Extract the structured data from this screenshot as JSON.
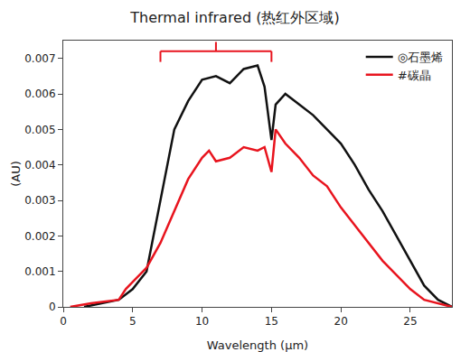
{
  "chart_data": {
    "type": "line",
    "title": "Thermal infrared (热红外区域)",
    "x_label": "Wavelength (μm)",
    "y_label": "(AU)",
    "highlight_range": [
      7,
      15
    ],
    "xlim": [
      0,
      28
    ],
    "xticks": [
      0,
      5,
      10,
      15,
      20,
      25
    ],
    "ylim": [
      0,
      0.0075
    ],
    "yticks": [
      0,
      0.001,
      0.002,
      0.003,
      0.004,
      0.005,
      0.006,
      0.007
    ],
    "grid": false,
    "legend": "top-right",
    "series": [
      {
        "name": "◎石墨烯",
        "color": "#111111",
        "x": [
          1.5,
          4,
          5,
          6,
          6.5,
          7,
          7.5,
          8,
          9,
          10,
          11,
          12,
          13,
          14,
          14.5,
          15,
          15.3,
          16,
          17,
          18,
          19,
          20,
          21,
          22,
          23,
          24,
          25,
          26,
          27,
          28
        ],
        "values": [
          0,
          0.0002,
          0.0005,
          0.001,
          0.002,
          0.003,
          0.004,
          0.005,
          0.0058,
          0.0064,
          0.0065,
          0.0063,
          0.0067,
          0.0068,
          0.0062,
          0.0047,
          0.0057,
          0.006,
          0.0057,
          0.0054,
          0.005,
          0.0046,
          0.004,
          0.0033,
          0.0027,
          0.002,
          0.0013,
          0.0006,
          0.0002,
          0
        ]
      },
      {
        "name": "#碳晶",
        "color": "#e8141e",
        "x": [
          0.5,
          2,
          4,
          4.5,
          5,
          6,
          7,
          8,
          9,
          10,
          10.5,
          11,
          12,
          13,
          14,
          14.5,
          15,
          15.3,
          16,
          17,
          18,
          19,
          20,
          21,
          22,
          23,
          24,
          25,
          26,
          27,
          28
        ],
        "values": [
          0,
          0.0001,
          0.0002,
          0.0005,
          0.0007,
          0.0011,
          0.0018,
          0.0027,
          0.0036,
          0.0042,
          0.0044,
          0.0041,
          0.0042,
          0.0045,
          0.0044,
          0.0045,
          0.0038,
          0.005,
          0.0046,
          0.0042,
          0.0037,
          0.0034,
          0.0028,
          0.0023,
          0.0018,
          0.0013,
          0.0009,
          0.0005,
          0.0002,
          0.0001,
          0
        ]
      }
    ]
  }
}
